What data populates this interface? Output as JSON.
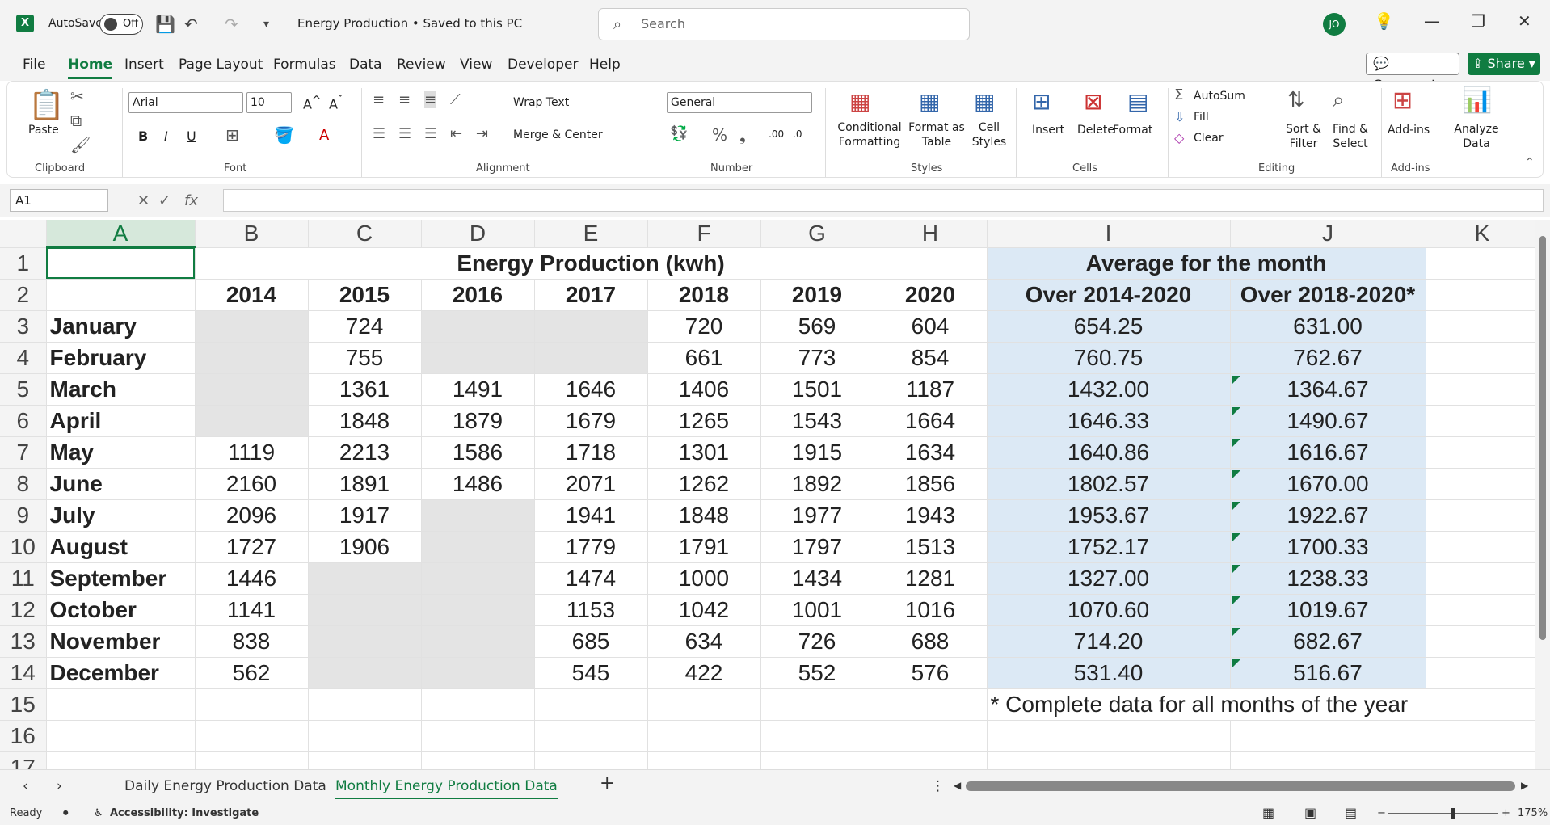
{
  "titlebar": {
    "autosave_label": "AutoSave",
    "autosave_state": "Off",
    "doc_title": "Energy Production • Saved to this PC",
    "search_placeholder": "Search",
    "avatar_initials": "JO"
  },
  "menu": [
    "File",
    "Home",
    "Insert",
    "Page Layout",
    "Formulas",
    "Data",
    "Review",
    "View",
    "Developer",
    "Help"
  ],
  "menu_active": "Home",
  "comments_label": "Comments",
  "share_label": "Share",
  "ribbon": {
    "paste": "Paste",
    "font_name": "Arial",
    "font_size": "10",
    "wrap_text": "Wrap Text",
    "merge_center": "Merge & Center",
    "number_format": "General",
    "conditional_formatting": "Conditional Formatting",
    "format_as_table": "Format as Table",
    "cell_styles": "Cell Styles",
    "insert": "Insert",
    "delete": "Delete",
    "format": "Format",
    "autosum": "AutoSum",
    "fill": "Fill",
    "clear": "Clear",
    "sort_filter": "Sort & Filter",
    "find_select": "Find & Select",
    "addins": "Add-ins",
    "analyze_data": "Analyze Data",
    "groups": {
      "clipboard": "Clipboard",
      "font": "Font",
      "alignment": "Alignment",
      "number": "Number",
      "styles": "Styles",
      "cells": "Cells",
      "editing": "Editing",
      "addins": "Add-ins"
    }
  },
  "formula_bar": {
    "name_box": "A1",
    "formula": ""
  },
  "columns": [
    "A",
    "B",
    "C",
    "D",
    "E",
    "F",
    "G",
    "H",
    "I",
    "J",
    "K"
  ],
  "sheet": {
    "title": "Energy Production (kwh)",
    "avg_title": "Average for the month",
    "years": [
      "2014",
      "2015",
      "2016",
      "2017",
      "2018",
      "2019",
      "2020"
    ],
    "avg_col1": "Over 2014-2020",
    "avg_col2": "Over 2018-2020*",
    "rows": [
      {
        "month": "January",
        "vals": [
          "",
          "724",
          "",
          "",
          "720",
          "569",
          "604"
        ],
        "avg1": "654.25",
        "avg2": "631.00"
      },
      {
        "month": "February",
        "vals": [
          "",
          "755",
          "",
          "",
          "661",
          "773",
          "854"
        ],
        "avg1": "760.75",
        "avg2": "762.67"
      },
      {
        "month": "March",
        "vals": [
          "",
          "1361",
          "1491",
          "1646",
          "1406",
          "1501",
          "1187"
        ],
        "avg1": "1432.00",
        "avg2": "1364.67"
      },
      {
        "month": "April",
        "vals": [
          "",
          "1848",
          "1879",
          "1679",
          "1265",
          "1543",
          "1664"
        ],
        "avg1": "1646.33",
        "avg2": "1490.67"
      },
      {
        "month": "May",
        "vals": [
          "1119",
          "2213",
          "1586",
          "1718",
          "1301",
          "1915",
          "1634"
        ],
        "avg1": "1640.86",
        "avg2": "1616.67"
      },
      {
        "month": "June",
        "vals": [
          "2160",
          "1891",
          "1486",
          "2071",
          "1262",
          "1892",
          "1856"
        ],
        "avg1": "1802.57",
        "avg2": "1670.00"
      },
      {
        "month": "July",
        "vals": [
          "2096",
          "1917",
          "",
          "1941",
          "1848",
          "1977",
          "1943"
        ],
        "avg1": "1953.67",
        "avg2": "1922.67"
      },
      {
        "month": "August",
        "vals": [
          "1727",
          "1906",
          "",
          "1779",
          "1791",
          "1797",
          "1513"
        ],
        "avg1": "1752.17",
        "avg2": "1700.33"
      },
      {
        "month": "September",
        "vals": [
          "1446",
          "",
          "",
          "1474",
          "1000",
          "1434",
          "1281"
        ],
        "avg1": "1327.00",
        "avg2": "1238.33"
      },
      {
        "month": "October",
        "vals": [
          "1141",
          "",
          "",
          "1153",
          "1042",
          "1001",
          "1016"
        ],
        "avg1": "1070.60",
        "avg2": "1019.67"
      },
      {
        "month": "November",
        "vals": [
          "838",
          "",
          "",
          "685",
          "634",
          "726",
          "688"
        ],
        "avg1": "714.20",
        "avg2": "682.67"
      },
      {
        "month": "December",
        "vals": [
          "562",
          "",
          "",
          "545",
          "422",
          "552",
          "576"
        ],
        "avg1": "531.40",
        "avg2": "516.67"
      }
    ],
    "footnote": "* Complete data for all months of the year"
  },
  "tabs": [
    "Daily Energy Production Data",
    "Monthly Energy Production Data"
  ],
  "tab_active": "Monthly Energy Production Data",
  "status": {
    "ready": "Ready",
    "accessibility": "Accessibility: Investigate",
    "zoom": "175%"
  }
}
